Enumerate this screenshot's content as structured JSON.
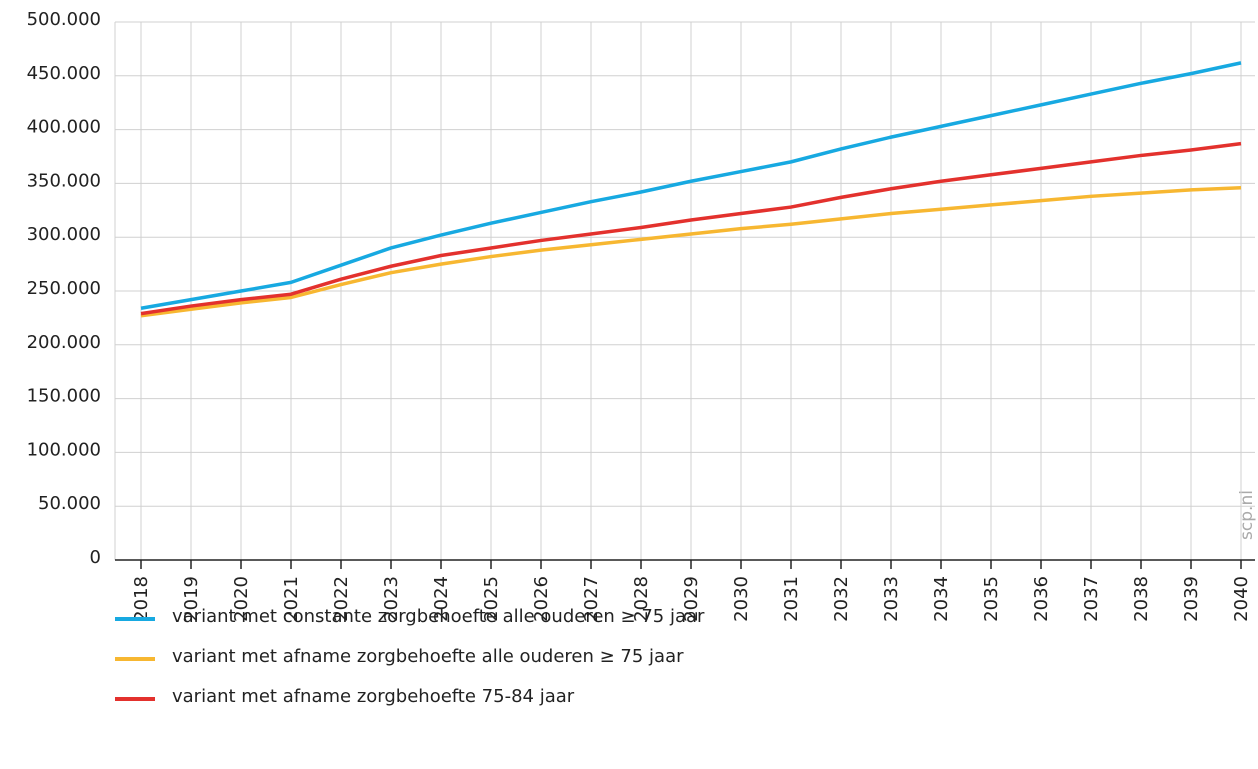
{
  "chart_data": {
    "type": "line",
    "source": "scp.nl",
    "categories": [
      "2018",
      "2019",
      "2020",
      "2021",
      "2022",
      "2023",
      "2024",
      "2025",
      "2026",
      "2027",
      "2028",
      "2029",
      "2030",
      "2031",
      "2032",
      "2033",
      "2034",
      "2035",
      "2036",
      "2037",
      "2038",
      "2039",
      "2040"
    ],
    "series": [
      {
        "name": "variant met constante zorgbehoefte alle ouderen ≥ 75 jaar",
        "color": "#17a9e1",
        "values": [
          234000,
          242000,
          250000,
          258000,
          274000,
          290000,
          302000,
          313000,
          323000,
          333000,
          342000,
          352000,
          361000,
          370000,
          382000,
          393000,
          403000,
          413000,
          423000,
          433000,
          443000,
          452000,
          462000
        ]
      },
      {
        "name": "variant met afname zorgbehoefte alle ouderen ≥ 75 jaar",
        "color": "#f7b731",
        "values": [
          227000,
          233000,
          239000,
          244000,
          256000,
          267000,
          275000,
          282000,
          288000,
          293000,
          298000,
          303000,
          308000,
          312000,
          317000,
          322000,
          326000,
          330000,
          334000,
          338000,
          341000,
          344000,
          346000
        ]
      },
      {
        "name": "variant met afname zorgbehoefte 75-84 jaar",
        "color": "#e3312d",
        "values": [
          229000,
          236000,
          242000,
          247000,
          261000,
          273000,
          283000,
          290000,
          297000,
          303000,
          309000,
          316000,
          322000,
          328000,
          337000,
          345000,
          352000,
          358000,
          364000,
          370000,
          376000,
          381000,
          387000
        ]
      }
    ],
    "ylim": [
      0,
      500000
    ],
    "yticks": [
      0,
      {
        "value": 50000,
        "label": "50.000"
      },
      {
        "value": 100000,
        "label": "100.000"
      },
      {
        "value": 150000,
        "label": "150.000"
      },
      {
        "value": 200000,
        "label": "200.000"
      },
      {
        "value": 250000,
        "label": "250.000"
      },
      {
        "value": 300000,
        "label": "300.000"
      },
      {
        "value": 350000,
        "label": "350.000"
      },
      {
        "value": 400000,
        "label": "400.000"
      },
      {
        "value": 450000,
        "label": "450.000"
      },
      {
        "value": 500000,
        "label": "500.000"
      }
    ],
    "grid": true
  }
}
